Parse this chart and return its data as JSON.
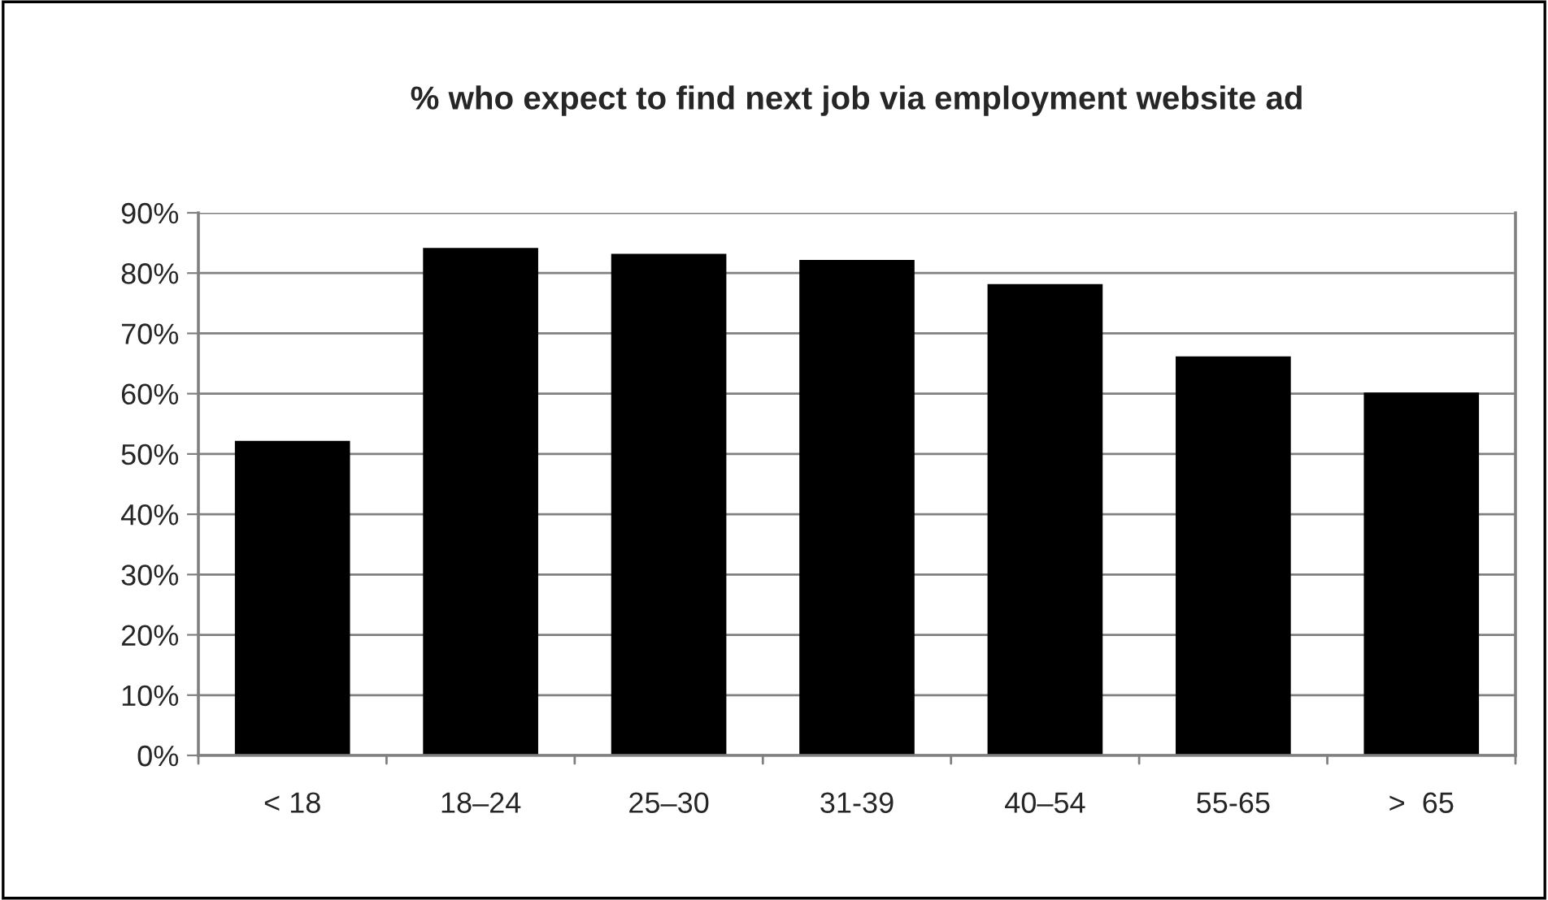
{
  "chart_data": {
    "type": "bar",
    "title": "% who expect to find next job via employment website ad",
    "categories": [
      "< 18",
      "18–24",
      "25–30",
      "31-39",
      "40–54",
      "55-65",
      ">  65"
    ],
    "values": [
      52,
      84,
      83,
      82,
      78,
      66,
      60
    ],
    "color": "#000000",
    "ylim": [
      0,
      90
    ],
    "yticks": [
      {
        "value": 0,
        "label": "0%"
      },
      {
        "value": 10,
        "label": "10%"
      },
      {
        "value": 20,
        "label": "20%"
      },
      {
        "value": 30,
        "label": "30%"
      },
      {
        "value": 40,
        "label": "40%"
      },
      {
        "value": 50,
        "label": "50%"
      },
      {
        "value": 60,
        "label": "60%"
      },
      {
        "value": 70,
        "label": "70%"
      },
      {
        "value": 80,
        "label": "80%"
      },
      {
        "value": 90,
        "label": "90%"
      }
    ],
    "grid": "y",
    "legend": false
  }
}
